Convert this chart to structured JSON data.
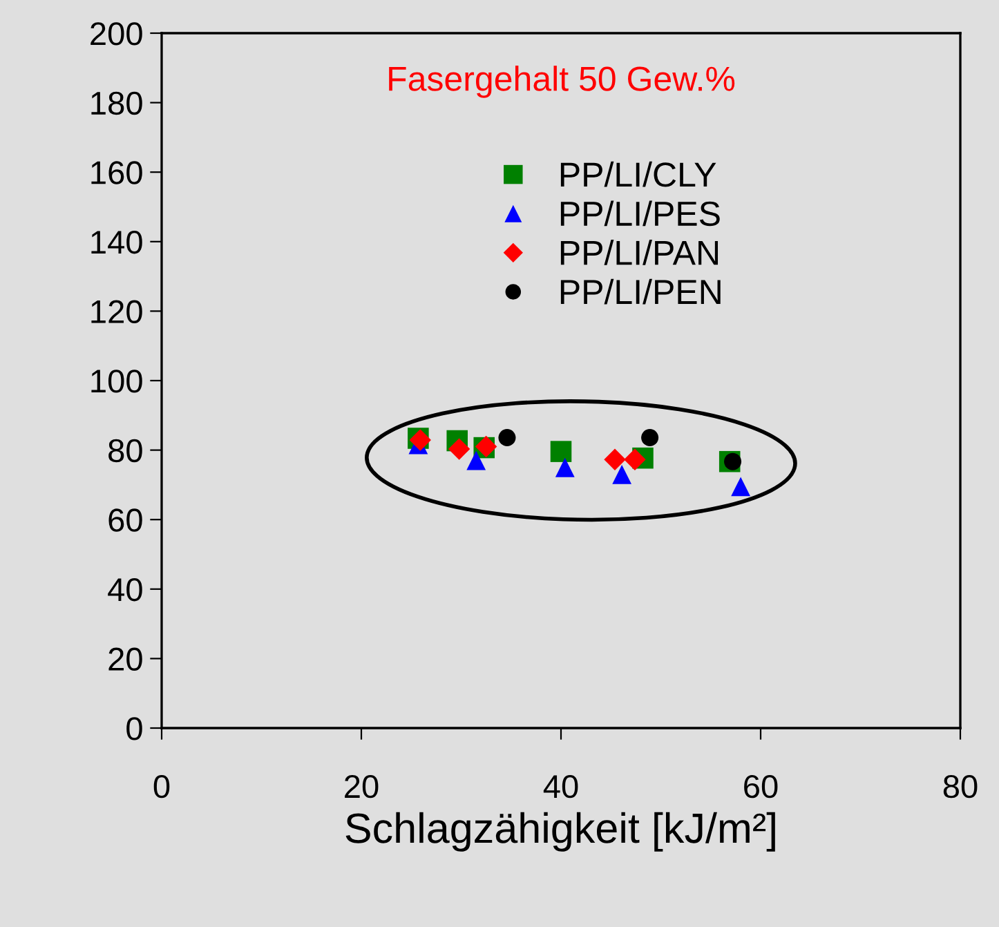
{
  "chart_data": {
    "type": "scatter",
    "xlabel": "Schlagzähigkeit [kJ/m²]",
    "annotations": [
      "Fasergehalt 50 Gew.%"
    ],
    "xlim": [
      0,
      80
    ],
    "xticks": [
      0,
      20,
      40,
      60,
      80
    ],
    "ylim": [
      0,
      200
    ],
    "yticks": [
      0,
      20,
      40,
      60,
      80,
      100,
      120,
      140,
      160,
      180,
      200
    ],
    "grid": false,
    "legend": "top",
    "series": [
      {
        "name": "PP/LI/CLY",
        "color": "#008000",
        "marker": "square",
        "x": [
          25.7,
          29.6,
          32.3,
          40.0,
          48.2,
          56.9
        ],
        "values": [
          83.4,
          82.7,
          80.7,
          79.6,
          77.7,
          76.7
        ]
      },
      {
        "name": "PP/LI/PES",
        "color": "#0000ff",
        "marker": "triangle",
        "x": [
          25.7,
          31.5,
          40.4,
          46.1,
          58.0
        ],
        "values": [
          81.6,
          77.0,
          75.0,
          73.0,
          69.5
        ]
      },
      {
        "name": "PP/LI/PAN",
        "color": "#ff0000",
        "marker": "diamond",
        "x": [
          25.9,
          29.8,
          32.5,
          45.4,
          47.4
        ],
        "values": [
          82.9,
          80.3,
          81.0,
          77.3,
          77.3
        ]
      },
      {
        "name": "PP/LI/PEN",
        "color": "#000000",
        "marker": "circle",
        "x": [
          34.6,
          48.9,
          57.2
        ],
        "values": [
          83.6,
          83.6,
          76.7
        ]
      }
    ]
  }
}
